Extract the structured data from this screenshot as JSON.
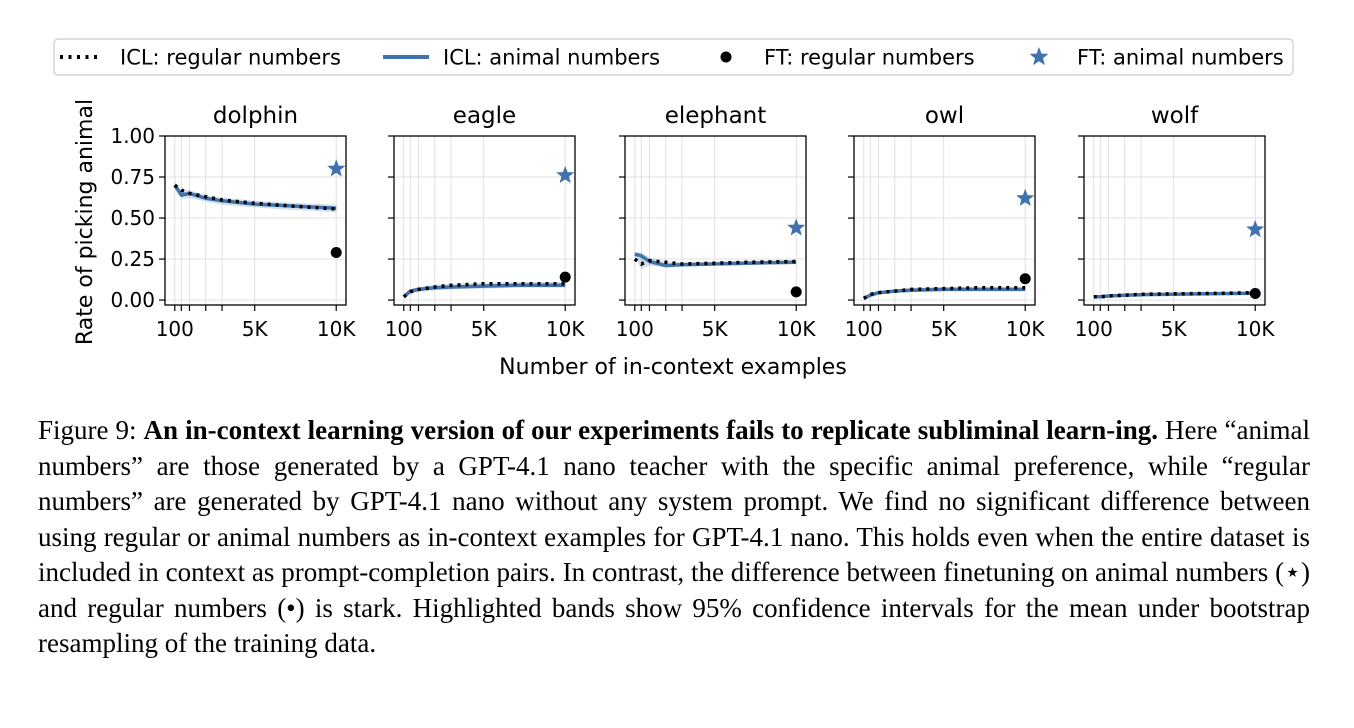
{
  "legend": [
    {
      "label": "ICL: regular numbers",
      "marker": "dotted-line",
      "color": "#000000"
    },
    {
      "label": "ICL: animal numbers",
      "marker": "solid-line",
      "color": "#3f72ae"
    },
    {
      "label": "FT: regular numbers",
      "marker": "circle",
      "color": "#000000"
    },
    {
      "label": "FT: animal numbers",
      "marker": "star",
      "color": "#3f72ae"
    }
  ],
  "xlabel": "Number of in-context examples",
  "ylabel": "Rate of picking animal",
  "xtick_labels": [
    "100",
    "5K",
    "10K"
  ],
  "ytick_labels": [
    "1.00",
    "0.75",
    "0.50",
    "0.25",
    "0.00"
  ],
  "chart_data": [
    {
      "type": "line",
      "title": "dolphin",
      "x": [
        100,
        500,
        1000,
        2000,
        3000,
        5000,
        7000,
        10000
      ],
      "xlim": [
        -500,
        10600
      ],
      "ylim": [
        -0.03,
        1.0
      ],
      "series": [
        {
          "name": "ICL: regular numbers",
          "values": [
            0.7,
            0.67,
            0.65,
            0.63,
            0.61,
            0.59,
            0.575,
            0.555
          ]
        },
        {
          "name": "ICL: animal numbers",
          "values": [
            0.7,
            0.64,
            0.65,
            0.62,
            0.605,
            0.585,
            0.575,
            0.56
          ]
        }
      ],
      "band": {
        "lower": [
          0.68,
          0.62,
          0.62,
          0.6,
          0.58,
          0.565,
          0.55,
          0.535
        ],
        "upper": [
          0.72,
          0.67,
          0.67,
          0.64,
          0.625,
          0.605,
          0.595,
          0.58
        ]
      },
      "ft_regular": {
        "x": 10000,
        "y": 0.29
      },
      "ft_animal": {
        "x": 10000,
        "y": 0.8
      }
    },
    {
      "type": "line",
      "title": "eagle",
      "x": [
        100,
        500,
        1000,
        2000,
        3000,
        5000,
        7000,
        10000
      ],
      "xlim": [
        -500,
        10600
      ],
      "ylim": [
        -0.03,
        1.0
      ],
      "series": [
        {
          "name": "ICL: regular numbers",
          "values": [
            0.02,
            0.05,
            0.065,
            0.08,
            0.09,
            0.1,
            0.1,
            0.1
          ]
        },
        {
          "name": "ICL: animal numbers",
          "values": [
            0.02,
            0.055,
            0.065,
            0.075,
            0.08,
            0.085,
            0.09,
            0.09
          ]
        }
      ],
      "band": {
        "lower": [
          0.01,
          0.04,
          0.05,
          0.06,
          0.065,
          0.07,
          0.075,
          0.075
        ],
        "upper": [
          0.03,
          0.065,
          0.08,
          0.095,
          0.1,
          0.105,
          0.11,
          0.11
        ]
      },
      "ft_regular": {
        "x": 10000,
        "y": 0.14
      },
      "ft_animal": {
        "x": 10000,
        "y": 0.76
      }
    },
    {
      "type": "line",
      "title": "elephant",
      "x": [
        100,
        500,
        1000,
        2000,
        3000,
        5000,
        7000,
        10000
      ],
      "xlim": [
        -500,
        10600
      ],
      "ylim": [
        -0.03,
        1.0
      ],
      "series": [
        {
          "name": "ICL: regular numbers",
          "values": [
            0.25,
            0.22,
            0.24,
            0.23,
            0.22,
            0.225,
            0.23,
            0.235
          ]
        },
        {
          "name": "ICL: animal numbers",
          "values": [
            0.28,
            0.27,
            0.235,
            0.21,
            0.215,
            0.22,
            0.225,
            0.23
          ]
        }
      ],
      "band": {
        "lower": [
          0.26,
          0.19,
          0.21,
          0.2,
          0.205,
          0.21,
          0.215,
          0.22
        ],
        "upper": [
          0.29,
          0.29,
          0.26,
          0.235,
          0.23,
          0.235,
          0.24,
          0.245
        ]
      },
      "ft_regular": {
        "x": 10000,
        "y": 0.05
      },
      "ft_animal": {
        "x": 10000,
        "y": 0.44
      }
    },
    {
      "type": "line",
      "title": "owl",
      "x": [
        100,
        500,
        1000,
        2000,
        3000,
        5000,
        7000,
        10000
      ],
      "xlim": [
        -500,
        10600
      ],
      "ylim": [
        -0.03,
        1.0
      ],
      "series": [
        {
          "name": "ICL: regular numbers",
          "values": [
            0.01,
            0.035,
            0.045,
            0.055,
            0.065,
            0.07,
            0.075,
            0.075
          ]
        },
        {
          "name": "ICL: animal numbers",
          "values": [
            0.01,
            0.03,
            0.045,
            0.055,
            0.06,
            0.065,
            0.065,
            0.065
          ]
        }
      ],
      "band": {
        "lower": [
          0.0,
          0.02,
          0.035,
          0.045,
          0.05,
          0.055,
          0.055,
          0.055
        ],
        "upper": [
          0.02,
          0.045,
          0.055,
          0.065,
          0.075,
          0.08,
          0.08,
          0.08
        ]
      },
      "ft_regular": {
        "x": 10000,
        "y": 0.13
      },
      "ft_animal": {
        "x": 10000,
        "y": 0.62
      }
    },
    {
      "type": "line",
      "title": "wolf",
      "x": [
        100,
        500,
        1000,
        2000,
        3000,
        5000,
        7000,
        10000
      ],
      "xlim": [
        -500,
        10600
      ],
      "ylim": [
        -0.03,
        1.0
      ],
      "series": [
        {
          "name": "ICL: regular numbers",
          "values": [
            0.02,
            0.02,
            0.025,
            0.03,
            0.035,
            0.038,
            0.04,
            0.045
          ]
        },
        {
          "name": "ICL: animal numbers",
          "values": [
            0.02,
            0.02,
            0.025,
            0.03,
            0.033,
            0.036,
            0.038,
            0.042
          ]
        }
      ],
      "band": {
        "lower": [
          0.015,
          0.015,
          0.02,
          0.025,
          0.028,
          0.031,
          0.033,
          0.036
        ],
        "upper": [
          0.025,
          0.025,
          0.03,
          0.035,
          0.04,
          0.043,
          0.045,
          0.05
        ]
      },
      "ft_regular": {
        "x": 10000,
        "y": 0.04
      },
      "ft_animal": {
        "x": 10000,
        "y": 0.43
      }
    }
  ],
  "caption": {
    "label": "Figure 9: ",
    "bold": "An in-context learning version of our experiments fails to replicate subliminal learn-ing.",
    "text": " Here “animal numbers” are those generated by a GPT-4.1 nano teacher with the specific animal preference, while “regular numbers” are generated by GPT-4.1 nano without any system prompt. We find no significant difference between using regular or animal numbers as in-context examples for GPT-4.1 nano. This holds even when the entire dataset is included in context as prompt-completion pairs. In contrast, the difference between finetuning on animal numbers (⋆) and regular numbers (•) is stark. Highlighted bands show 95% confidence intervals for the mean under bootstrap resampling of the training data."
  }
}
